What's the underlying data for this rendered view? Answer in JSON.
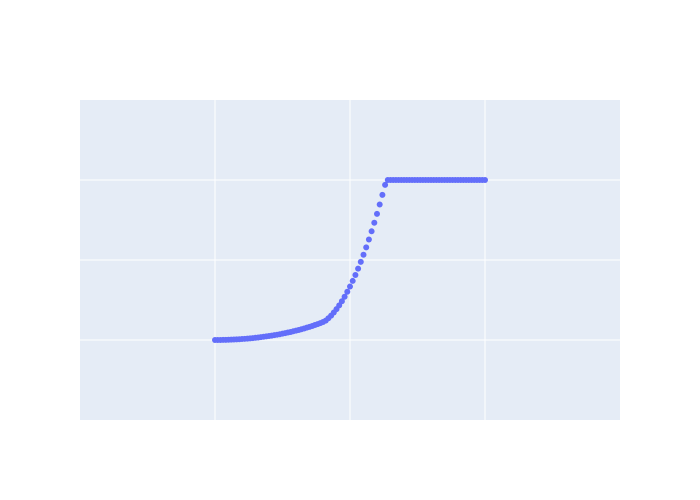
{
  "colors": {
    "plot_background": "#e5ecf6",
    "gridline": "#ffffff",
    "marker": "#636efa",
    "page_background": "#ffffff"
  },
  "chart_data": {
    "type": "scatter",
    "xlim": [
      -1,
      3
    ],
    "ylim": [
      -1,
      3
    ],
    "x_gridlines": [
      0,
      1,
      2
    ],
    "y_gridlines": [
      0,
      1,
      2
    ],
    "grid": true,
    "legend": "none",
    "series": [
      {
        "marker": "circle",
        "x": [
          0,
          0.02,
          0.04,
          0.06,
          0.08,
          0.1,
          0.12,
          0.14,
          0.16,
          0.18,
          0.2,
          0.22,
          0.24,
          0.26,
          0.28,
          0.3,
          0.32,
          0.34,
          0.36,
          0.38,
          0.4,
          0.42,
          0.44,
          0.46,
          0.48,
          0.5,
          0.52,
          0.54,
          0.56,
          0.58,
          0.6,
          0.62,
          0.64,
          0.66,
          0.68,
          0.7,
          0.72,
          0.74,
          0.76,
          0.78,
          0.8,
          0.82,
          0.84,
          0.86,
          0.88,
          0.9,
          0.92,
          0.94,
          0.96,
          0.98,
          1,
          1.02,
          1.04,
          1.06,
          1.08,
          1.1,
          1.12,
          1.14,
          1.16,
          1.18,
          1.2,
          1.22,
          1.24,
          1.26,
          1.28,
          1.3,
          1.32,
          1.34,
          1.36,
          1.38,
          1.4,
          1.42,
          1.44,
          1.46,
          1.48,
          1.5,
          1.52,
          1.54,
          1.56,
          1.58,
          1.6,
          1.62,
          1.64,
          1.66,
          1.68,
          1.7,
          1.72,
          1.74,
          1.76,
          1.78,
          1.8,
          1.82,
          1.84,
          1.86,
          1.88,
          1.9,
          1.92,
          1.94,
          1.96,
          1.98,
          2
        ],
        "y": [
          0,
          0.0001,
          0.0005,
          0.0011,
          0.002,
          0.0031,
          0.0044,
          0.006,
          0.0078,
          0.0099,
          0.0122,
          0.0148,
          0.0176,
          0.0207,
          0.024,
          0.0276,
          0.0315,
          0.0356,
          0.04,
          0.0447,
          0.0497,
          0.0549,
          0.0605,
          0.0664,
          0.0726,
          0.0791,
          0.0859,
          0.0931,
          0.1007,
          0.1086,
          0.1169,
          0.1255,
          0.1346,
          0.1441,
          0.1541,
          0.1645,
          0.1754,
          0.1868,
          0.1987,
          0.2112,
          0.2243,
          0.2429,
          0.2716,
          0.3051,
          0.3431,
          0.3858,
          0.433,
          0.4849,
          0.5413,
          0.6024,
          0.668,
          0.7383,
          0.8131,
          0.8925,
          0.9766,
          1.0652,
          1.1584,
          1.2562,
          1.3586,
          1.4656,
          1.5772,
          1.6934,
          1.8141,
          1.9395,
          2,
          2,
          2,
          2,
          2,
          2,
          2,
          2,
          2,
          2,
          2,
          2,
          2,
          2,
          2,
          2,
          2,
          2,
          2,
          2,
          2,
          2,
          2,
          2,
          2,
          2,
          2,
          2,
          2,
          2,
          2,
          2,
          2,
          2,
          2,
          2,
          2
        ]
      }
    ]
  }
}
